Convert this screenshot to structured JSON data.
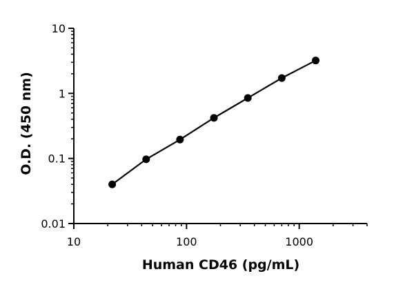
{
  "chart_data": {
    "type": "scatter",
    "title": "",
    "xlabel": "Human CD46 (pg/mL)",
    "ylabel": "O.D. (450 nm)",
    "x_scale": "log",
    "y_scale": "log",
    "xlim": [
      10,
      4000
    ],
    "ylim": [
      0.01,
      10
    ],
    "x_ticks": [
      10,
      100,
      1000
    ],
    "x_tick_labels": [
      "10",
      "100",
      "1000"
    ],
    "y_ticks": [
      0.01,
      0.1,
      1,
      10
    ],
    "y_tick_labels": [
      "0.01",
      "0.1",
      "1",
      "10"
    ],
    "grid": false,
    "series": [
      {
        "x": [
          21.9,
          43.8,
          87.5,
          175,
          350,
          700,
          1400
        ],
        "y": [
          0.04,
          0.097,
          0.195,
          0.42,
          0.85,
          1.72,
          3.2
        ],
        "color": "#000000",
        "fit_line": true
      }
    ]
  }
}
